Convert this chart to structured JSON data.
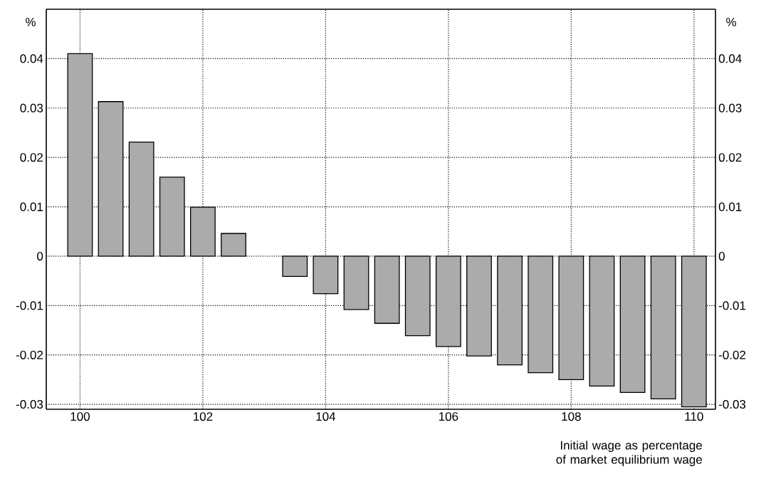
{
  "chart_data": {
    "type": "bar",
    "xlabel": "Initial wage as percentage of market equilibrium wage",
    "ylabel": "%",
    "y2label": "%",
    "x": [
      100,
      100.5,
      101,
      101.5,
      102,
      102.5,
      103.5,
      104,
      104.5,
      105,
      105.5,
      106,
      106.5,
      107,
      107.5,
      108,
      108.5,
      109,
      109.5,
      110
    ],
    "values": [
      0.041,
      0.0313,
      0.0231,
      0.016,
      0.0099,
      0.0046,
      -0.0041,
      -0.0076,
      -0.0108,
      -0.0136,
      -0.0161,
      -0.0183,
      -0.0202,
      -0.022,
      -0.0236,
      -0.025,
      -0.0263,
      -0.0276,
      -0.0289,
      -0.0305
    ],
    "color": "#ababab",
    "xlim": [
      99.45,
      110.35
    ],
    "xticks": [
      100,
      102,
      104,
      106,
      108,
      110
    ],
    "ylim": [
      -0.031,
      0.05
    ],
    "yticks": [
      -0.03,
      -0.02,
      -0.01,
      0,
      0.01,
      0.02,
      0.03,
      0.04
    ],
    "y2lim": [
      -0.031,
      0.05
    ],
    "y2ticks": [
      -0.03,
      -0.02,
      -0.01,
      0,
      0.01,
      0.02,
      0.03,
      0.04
    ],
    "grid": true
  }
}
